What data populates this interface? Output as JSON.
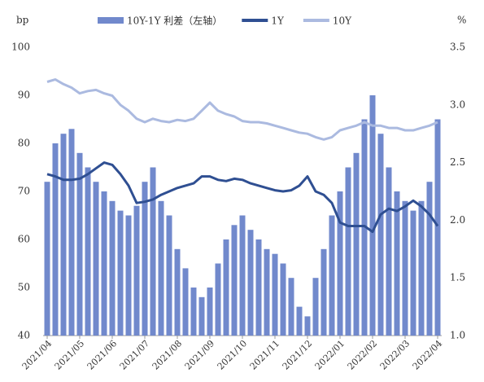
{
  "chart_data": {
    "type": "bar_line",
    "y_label": "bp",
    "y2_label": "%",
    "categories": [
      "2021/04",
      null,
      null,
      null,
      "2021/05",
      null,
      null,
      null,
      "2021/06",
      null,
      null,
      null,
      "2021/07",
      null,
      null,
      null,
      "2021/08",
      null,
      null,
      null,
      "2021/09",
      null,
      null,
      null,
      "2021/10",
      null,
      null,
      null,
      "2021/11",
      null,
      null,
      null,
      "2021/12",
      null,
      null,
      null,
      "2022/01",
      null,
      null,
      null,
      "2022/02",
      null,
      null,
      null,
      "2022/03",
      null,
      null,
      null,
      "2022/04"
    ],
    "series": [
      {
        "name": "10Y-1Y 利差（左轴）",
        "type": "bar",
        "color": "#7189cc",
        "axis": "y",
        "values": [
          72,
          80,
          82,
          83,
          78,
          75,
          72,
          70,
          68,
          66,
          65,
          67,
          72,
          75,
          68,
          65,
          58,
          54,
          50,
          48,
          50,
          55,
          60,
          63,
          65,
          62,
          60,
          58,
          57,
          55,
          52,
          46,
          44,
          52,
          58,
          65,
          70,
          75,
          78,
          85,
          90,
          82,
          75,
          70,
          68,
          66,
          68,
          72,
          85
        ]
      },
      {
        "name": "1Y",
        "type": "line",
        "color": "#2f4f92",
        "axis": "y2",
        "values": [
          2.4,
          2.38,
          2.35,
          2.35,
          2.36,
          2.4,
          2.45,
          2.5,
          2.48,
          2.4,
          2.3,
          2.15,
          2.16,
          2.18,
          2.22,
          2.25,
          2.28,
          2.3,
          2.32,
          2.38,
          2.38,
          2.35,
          2.34,
          2.36,
          2.35,
          2.32,
          2.3,
          2.28,
          2.26,
          2.25,
          2.26,
          2.3,
          2.38,
          2.25,
          2.22,
          2.15,
          1.98,
          1.95,
          1.95,
          1.95,
          1.9,
          2.05,
          2.1,
          2.08,
          2.12,
          2.17,
          2.12,
          2.05,
          1.95
        ]
      },
      {
        "name": "10Y",
        "type": "line",
        "color": "#abbae0",
        "axis": "y2",
        "values": [
          3.2,
          3.22,
          3.18,
          3.15,
          3.1,
          3.12,
          3.13,
          3.1,
          3.08,
          3.0,
          2.95,
          2.88,
          2.85,
          2.88,
          2.86,
          2.85,
          2.87,
          2.86,
          2.88,
          2.95,
          3.02,
          2.95,
          2.92,
          2.9,
          2.86,
          2.85,
          2.85,
          2.84,
          2.82,
          2.8,
          2.78,
          2.76,
          2.75,
          2.72,
          2.7,
          2.72,
          2.78,
          2.8,
          2.82,
          2.85,
          2.82,
          2.82,
          2.8,
          2.8,
          2.78,
          2.78,
          2.8,
          2.82,
          2.85
        ]
      }
    ],
    "ylim": [
      40,
      100
    ],
    "yticks": [
      40,
      50,
      60,
      70,
      80,
      90,
      100
    ],
    "y2lim": [
      1.0,
      3.5
    ],
    "y2ticks": [
      {
        "value": 1.0,
        "label": "1.0"
      },
      1.5,
      {
        "value": 2.0,
        "label": "2.0"
      },
      2.5,
      {
        "value": 3.0,
        "label": "3.0"
      },
      3.5
    ],
    "legend": "top",
    "grid": false
  }
}
